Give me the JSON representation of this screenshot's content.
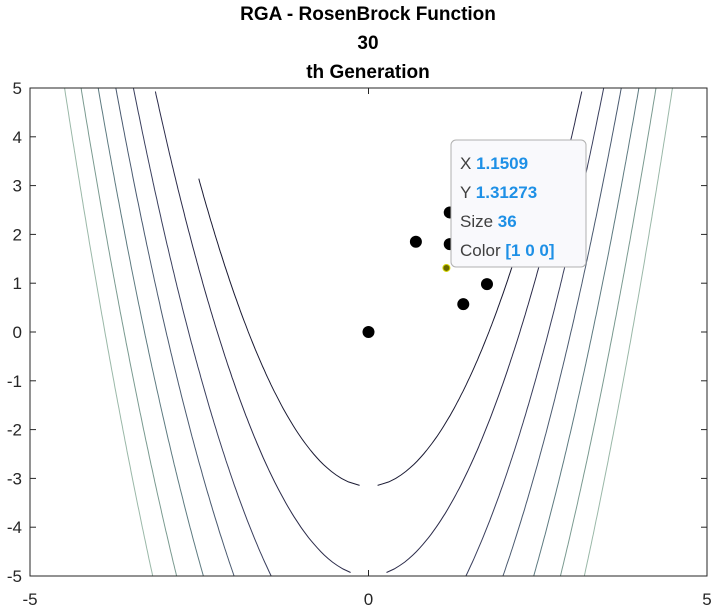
{
  "chart_data": {
    "type": "scatter",
    "title": [
      "RGA - RosenBrock Function",
      "30",
      "th Generation"
    ],
    "xlim": [
      -5,
      5
    ],
    "ylim": [
      -5,
      5
    ],
    "xticks": [
      -5,
      0,
      5
    ],
    "yticks": [
      5,
      4,
      3,
      2,
      1,
      0,
      -1,
      -2,
      -3,
      -4,
      -5
    ],
    "grid": false,
    "background": "rosenbrock-contour",
    "marker_color": "#000000",
    "points": [
      {
        "x": 0.0,
        "y": 0.0
      },
      {
        "x": 0.7,
        "y": 1.85
      },
      {
        "x": 1.2,
        "y": 2.45
      },
      {
        "x": 1.2,
        "y": 1.8
      },
      {
        "x": 1.75,
        "y": 0.98
      },
      {
        "x": 1.4,
        "y": 0.57
      },
      {
        "x": 1.1509,
        "y": 1.31273
      }
    ],
    "selected_point": {
      "x": 1.1509,
      "y": 1.31273
    }
  },
  "datatip": {
    "rows": [
      {
        "label": "X",
        "value": "1.1509"
      },
      {
        "label": "Y",
        "value": "1.31273"
      },
      {
        "label": "Size",
        "value": "36"
      },
      {
        "label": "Color",
        "value": "[1 0 0]"
      }
    ]
  }
}
